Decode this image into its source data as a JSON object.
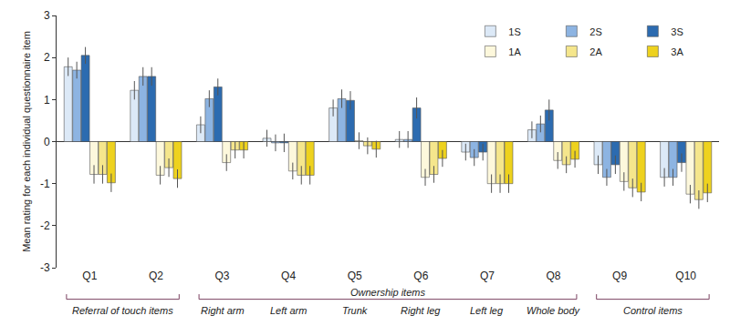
{
  "chart_data": {
    "type": "bar",
    "y_label": "Mean rating for each individual questionnaire item",
    "categories": [
      "Q1",
      "Q2",
      "Q3",
      "Q4",
      "Q5",
      "Q6",
      "Q7",
      "Q8",
      "Q9",
      "Q10"
    ],
    "series": [
      {
        "name": "1S",
        "color": "#dce9f7",
        "values": [
          1.78,
          1.22,
          0.4,
          0.08,
          0.8,
          0.05,
          -0.25,
          0.28,
          -0.55,
          -0.85
        ],
        "errors": [
          0.22,
          0.22,
          0.2,
          0.2,
          0.2,
          0.2,
          0.2,
          0.2,
          0.22,
          0.22
        ]
      },
      {
        "name": "2S",
        "color": "#8db4e2",
        "values": [
          1.7,
          1.55,
          1.02,
          -0.03,
          1.02,
          0.05,
          -0.38,
          0.42,
          -0.85,
          -0.85
        ],
        "errors": [
          0.2,
          0.22,
          0.2,
          0.2,
          0.22,
          0.2,
          0.2,
          0.2,
          0.2,
          0.2
        ]
      },
      {
        "name": "3S",
        "color": "#2c6bb0",
        "values": [
          2.05,
          1.55,
          1.3,
          -0.03,
          0.98,
          0.8,
          -0.25,
          0.75,
          -0.55,
          -0.5
        ],
        "errors": [
          0.2,
          0.22,
          0.2,
          0.22,
          0.22,
          0.25,
          0.2,
          0.25,
          0.22,
          0.22
        ]
      },
      {
        "name": "1A",
        "color": "#fdf8dc",
        "values": [
          -0.78,
          -0.8,
          -0.5,
          -0.7,
          0.02,
          -0.85,
          -1.0,
          -0.45,
          -0.95,
          -1.25
        ],
        "errors": [
          0.22,
          0.22,
          0.2,
          0.2,
          0.2,
          0.2,
          0.22,
          0.2,
          0.22,
          0.22
        ]
      },
      {
        "name": "2A",
        "color": "#f5e68c",
        "values": [
          -0.78,
          -0.62,
          -0.2,
          -0.8,
          -0.1,
          -0.78,
          -1.0,
          -0.55,
          -1.1,
          -1.38
        ],
        "errors": [
          0.22,
          0.22,
          0.2,
          0.22,
          0.2,
          0.2,
          0.22,
          0.2,
          0.22,
          0.22
        ]
      },
      {
        "name": "3A",
        "color": "#eed21e",
        "values": [
          -0.98,
          -0.88,
          -0.2,
          -0.8,
          -0.18,
          -0.4,
          -1.0,
          -0.42,
          -1.2,
          -1.22
        ],
        "errors": [
          0.22,
          0.22,
          0.2,
          0.22,
          0.2,
          0.2,
          0.22,
          0.2,
          0.22,
          0.22
        ]
      }
    ],
    "ylim": [
      -3,
      3
    ],
    "yticks": [
      -3,
      -2,
      -1,
      0,
      1,
      2,
      3
    ],
    "grid": false,
    "legend": "top right",
    "groups": [
      {
        "label": "Referral of touch items",
        "categories": [
          "Q1",
          "Q2"
        ]
      },
      {
        "label": "Right arm",
        "categories": [
          "Q3"
        ]
      },
      {
        "label": "Left arm",
        "categories": [
          "Q4"
        ]
      },
      {
        "label": "Trunk",
        "categories": [
          "Q5"
        ]
      },
      {
        "label": "Right leg",
        "categories": [
          "Q6"
        ]
      },
      {
        "label": "Left leg",
        "categories": [
          "Q7"
        ]
      },
      {
        "label": "Whole body",
        "categories": [
          "Q8"
        ]
      },
      {
        "label": "Control items",
        "categories": [
          "Q9",
          "Q10"
        ]
      }
    ],
    "super_groups": [
      {
        "label": "Ownership items",
        "categories": [
          "Q3",
          "Q4",
          "Q5",
          "Q6",
          "Q7",
          "Q8"
        ]
      }
    ]
  }
}
